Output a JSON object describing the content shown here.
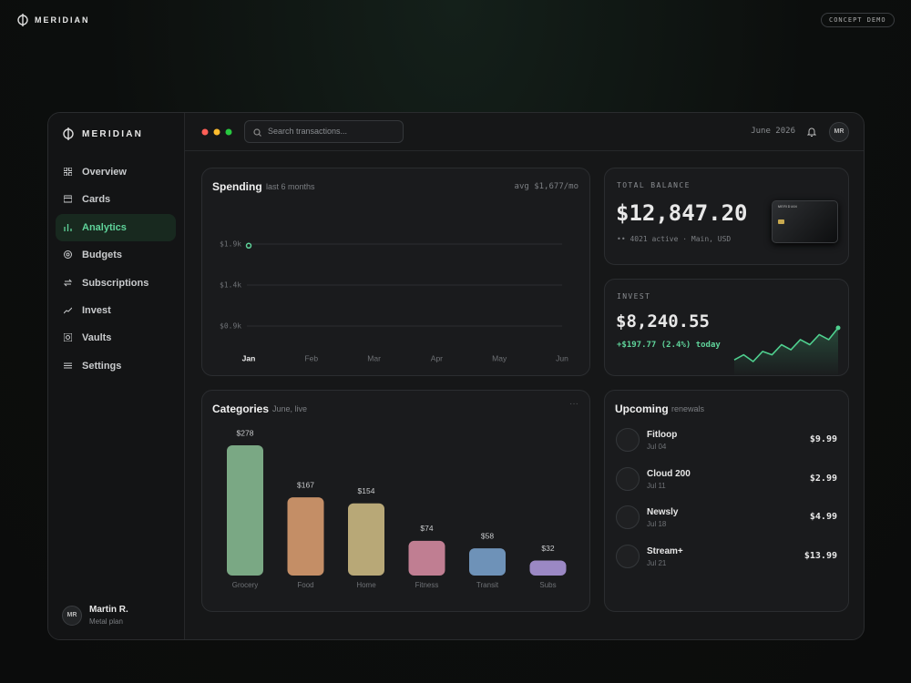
{
  "brand": "MERIDIAN",
  "badge": "CONCEPT DEMO",
  "sidebar": {
    "brand": "MERIDIAN",
    "nav": [
      {
        "label": "Overview"
      },
      {
        "label": "Cards"
      },
      {
        "label": "Analytics",
        "active": true
      },
      {
        "label": "Budgets"
      },
      {
        "label": "Subscriptions"
      },
      {
        "label": "Invest"
      },
      {
        "label": "Vaults"
      },
      {
        "label": "Settings"
      }
    ],
    "user": {
      "initials": "MR",
      "name": "Martin R.",
      "plan": "Metal plan"
    }
  },
  "topbar": {
    "search_placeholder": "Search transactions...",
    "date": "June 2026",
    "avatar": "MR"
  },
  "balance": {
    "label": "TOTAL BALANCE",
    "amount": "$12,847.20",
    "detail": "•• 4021 active · Main, USD",
    "card_brand": "MERIDIAN"
  },
  "invest": {
    "label": "INVEST",
    "amount": "$8,240.55",
    "change": "+$197.77 (2.4%) today"
  },
  "upcoming": {
    "title": "Upcoming",
    "subtitle": "renewals",
    "items": [
      {
        "name": "Fitloop",
        "date": "Jul 04",
        "amount": "$9.99"
      },
      {
        "name": "Cloud 200",
        "date": "Jul 11",
        "amount": "$2.99"
      },
      {
        "name": "Newsly",
        "date": "Jul 18",
        "amount": "$4.99"
      },
      {
        "name": "Stream+",
        "date": "Jul 21",
        "amount": "$13.99"
      }
    ]
  },
  "chart_data": [
    {
      "type": "line",
      "title": "Spending",
      "subtitle": "last 6 months",
      "note": "avg $1,677/mo",
      "categories": [
        "Jan",
        "Feb",
        "Mar",
        "Apr",
        "May",
        "Jun"
      ],
      "values": [
        1880,
        null,
        null,
        null,
        null,
        null
      ],
      "color": "#5fd39a",
      "ylim": [
        700,
        2200
      ],
      "yticks": [
        {
          "value": 900,
          "label": "$0.9k"
        },
        {
          "value": 1400,
          "label": "$1.4k"
        },
        {
          "value": 1900,
          "label": "$1.9k"
        }
      ],
      "grid": true
    },
    {
      "type": "bar",
      "title": "Categories",
      "subtitle": "June, live",
      "menu": "···",
      "categories": [
        "Grocery",
        "Food",
        "Home",
        "Fitness",
        "Transit",
        "Subs"
      ],
      "values": [
        278,
        167,
        154,
        74,
        58,
        32
      ],
      "value_labels": [
        "$278",
        "$167",
        "$154",
        "$74",
        "$58",
        "$32"
      ],
      "colors": [
        "#7aa884",
        "#c48e66",
        "#b8a877",
        "#c07e92",
        "#6e92b8",
        "#9b88c4"
      ]
    },
    {
      "type": "area",
      "values": [
        3,
        6,
        2,
        8,
        6,
        12,
        9,
        15,
        12,
        18,
        15,
        22
      ],
      "color": "#4fd08f"
    }
  ]
}
